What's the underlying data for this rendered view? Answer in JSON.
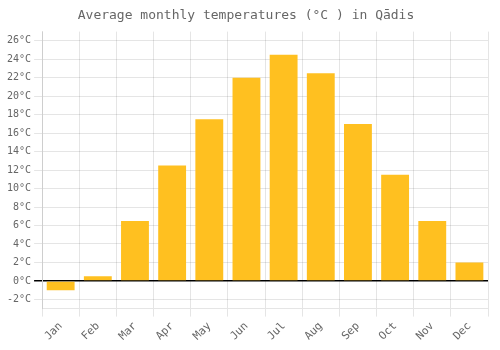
{
  "chart_data": {
    "type": "bar",
    "title": "Average monthly temperatures (°C ) in Qādis",
    "categories": [
      "Jan",
      "Feb",
      "Mar",
      "Apr",
      "May",
      "Jun",
      "Jul",
      "Aug",
      "Sep",
      "Oct",
      "Nov",
      "Dec"
    ],
    "values": [
      -1.0,
      0.5,
      6.5,
      12.5,
      17.5,
      22.0,
      24.5,
      22.5,
      17.0,
      11.5,
      6.5,
      2.0
    ],
    "color": "#FFC020",
    "ylim": [
      -3,
      27
    ],
    "yticks": [
      {
        "value": -2,
        "label": "-2°C"
      },
      {
        "value": 0,
        "label": "0°C"
      },
      {
        "value": 2,
        "label": "2°C"
      },
      {
        "value": 4,
        "label": "4°C"
      },
      {
        "value": 6,
        "label": "6°C"
      },
      {
        "value": 8,
        "label": "8°C"
      },
      {
        "value": 10,
        "label": "10°C"
      },
      {
        "value": 12,
        "label": "12°C"
      },
      {
        "value": 14,
        "label": "14°C"
      },
      {
        "value": 16,
        "label": "16°C"
      },
      {
        "value": 18,
        "label": "18°C"
      },
      {
        "value": 20,
        "label": "20°C"
      },
      {
        "value": 22,
        "label": "22°C"
      },
      {
        "value": 24,
        "label": "24°C"
      },
      {
        "value": 26,
        "label": "26°C"
      }
    ],
    "grid": true
  }
}
